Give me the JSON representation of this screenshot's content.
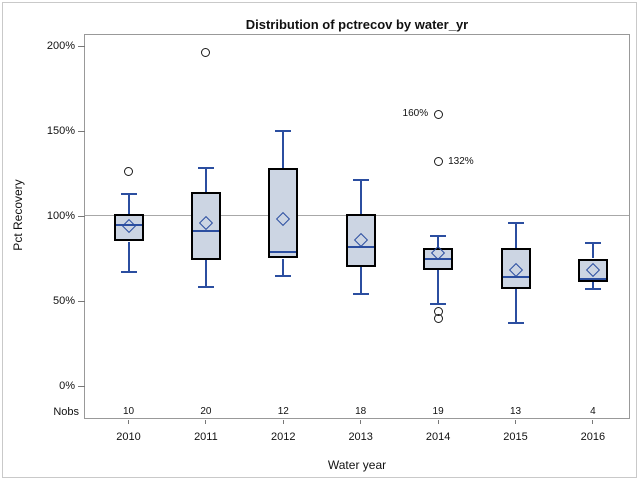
{
  "chart_data": {
    "type": "boxplot",
    "title": "Distribution of pctrecov by water_yr",
    "xlabel": "Water year",
    "ylabel": "Pct Recovery",
    "nobs_label": "Nobs",
    "ylim": [
      0,
      210
    ],
    "yticks": [
      0,
      50,
      100,
      150,
      200
    ],
    "ytick_labels": [
      "0%",
      "50%",
      "100%",
      "150%",
      "200%"
    ],
    "reference_line": 100,
    "grid": false,
    "legend": "none",
    "categories": [
      "2010",
      "2011",
      "2012",
      "2013",
      "2014",
      "2015",
      "2016"
    ],
    "nobs": [
      10,
      20,
      12,
      18,
      19,
      13,
      4
    ],
    "boxes": [
      {
        "category": "2010",
        "n": 10,
        "whisker_low": 67,
        "q1": 85,
        "median": 95,
        "q3": 101,
        "whisker_high": 113,
        "mean": 94,
        "outliers": [
          {
            "value": 126
          }
        ]
      },
      {
        "category": "2011",
        "n": 20,
        "whisker_low": 58,
        "q1": 74,
        "median": 91,
        "q3": 114,
        "whisker_high": 128,
        "mean": 96,
        "outliers": [
          {
            "value": 196
          }
        ]
      },
      {
        "category": "2012",
        "n": 12,
        "whisker_low": 65,
        "q1": 75,
        "median": 79,
        "q3": 128,
        "whisker_high": 150,
        "mean": 98,
        "outliers": []
      },
      {
        "category": "2013",
        "n": 18,
        "whisker_low": 54,
        "q1": 70,
        "median": 82,
        "q3": 101,
        "whisker_high": 121,
        "mean": 86,
        "outliers": []
      },
      {
        "category": "2014",
        "n": 19,
        "whisker_low": 48,
        "q1": 68,
        "median": 75,
        "q3": 81,
        "whisker_high": 88,
        "mean": 78,
        "outliers": [
          {
            "value": 160,
            "label": "160%",
            "label_side": "left"
          },
          {
            "value": 132,
            "label": "132%",
            "label_side": "right"
          },
          {
            "value": 44
          },
          {
            "value": 40
          }
        ]
      },
      {
        "category": "2015",
        "n": 13,
        "whisker_low": 37,
        "q1": 57,
        "median": 64,
        "q3": 81,
        "whisker_high": 96,
        "mean": 68,
        "outliers": []
      },
      {
        "category": "2016",
        "n": 4,
        "whisker_low": 57,
        "q1": 61,
        "median": 63,
        "q3": 75,
        "whisker_high": 84,
        "mean": 68,
        "outliers": []
      }
    ],
    "colors": {
      "box_fill": "#ccd5e3",
      "box_border": "#000000",
      "line_blue": "#2b4ea0",
      "outlier_stroke": "#1a1a1a",
      "reference_line": "#a8a8a8",
      "plot_frame": "#999999",
      "figure_border": "#c9c9c9",
      "background": "#ffffff"
    }
  }
}
